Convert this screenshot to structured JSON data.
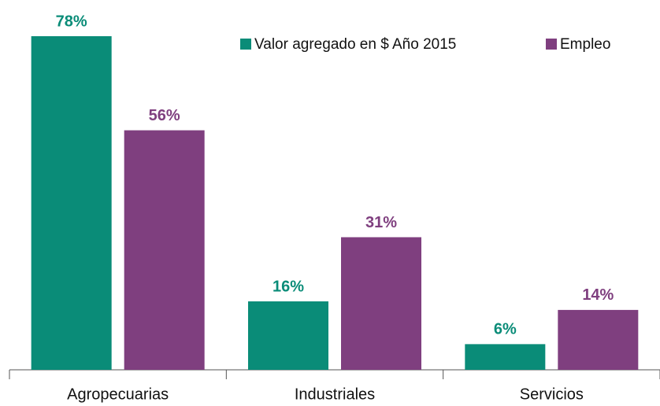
{
  "chart_data": {
    "type": "bar",
    "categories": [
      "Agropecuarias",
      "Industriales",
      "Servicios"
    ],
    "series": [
      {
        "name": "Valor agregado en $ Año 2015",
        "color": "#0a8c78",
        "values": [
          78,
          16,
          6
        ],
        "value_labels": [
          "78%",
          "16%",
          "6%"
        ]
      },
      {
        "name": "Empleo",
        "color": "#7f3f7f",
        "values": [
          56,
          31,
          14
        ],
        "value_labels": [
          "56%",
          "31%",
          "14%"
        ]
      }
    ],
    "legend": "top-right"
  }
}
